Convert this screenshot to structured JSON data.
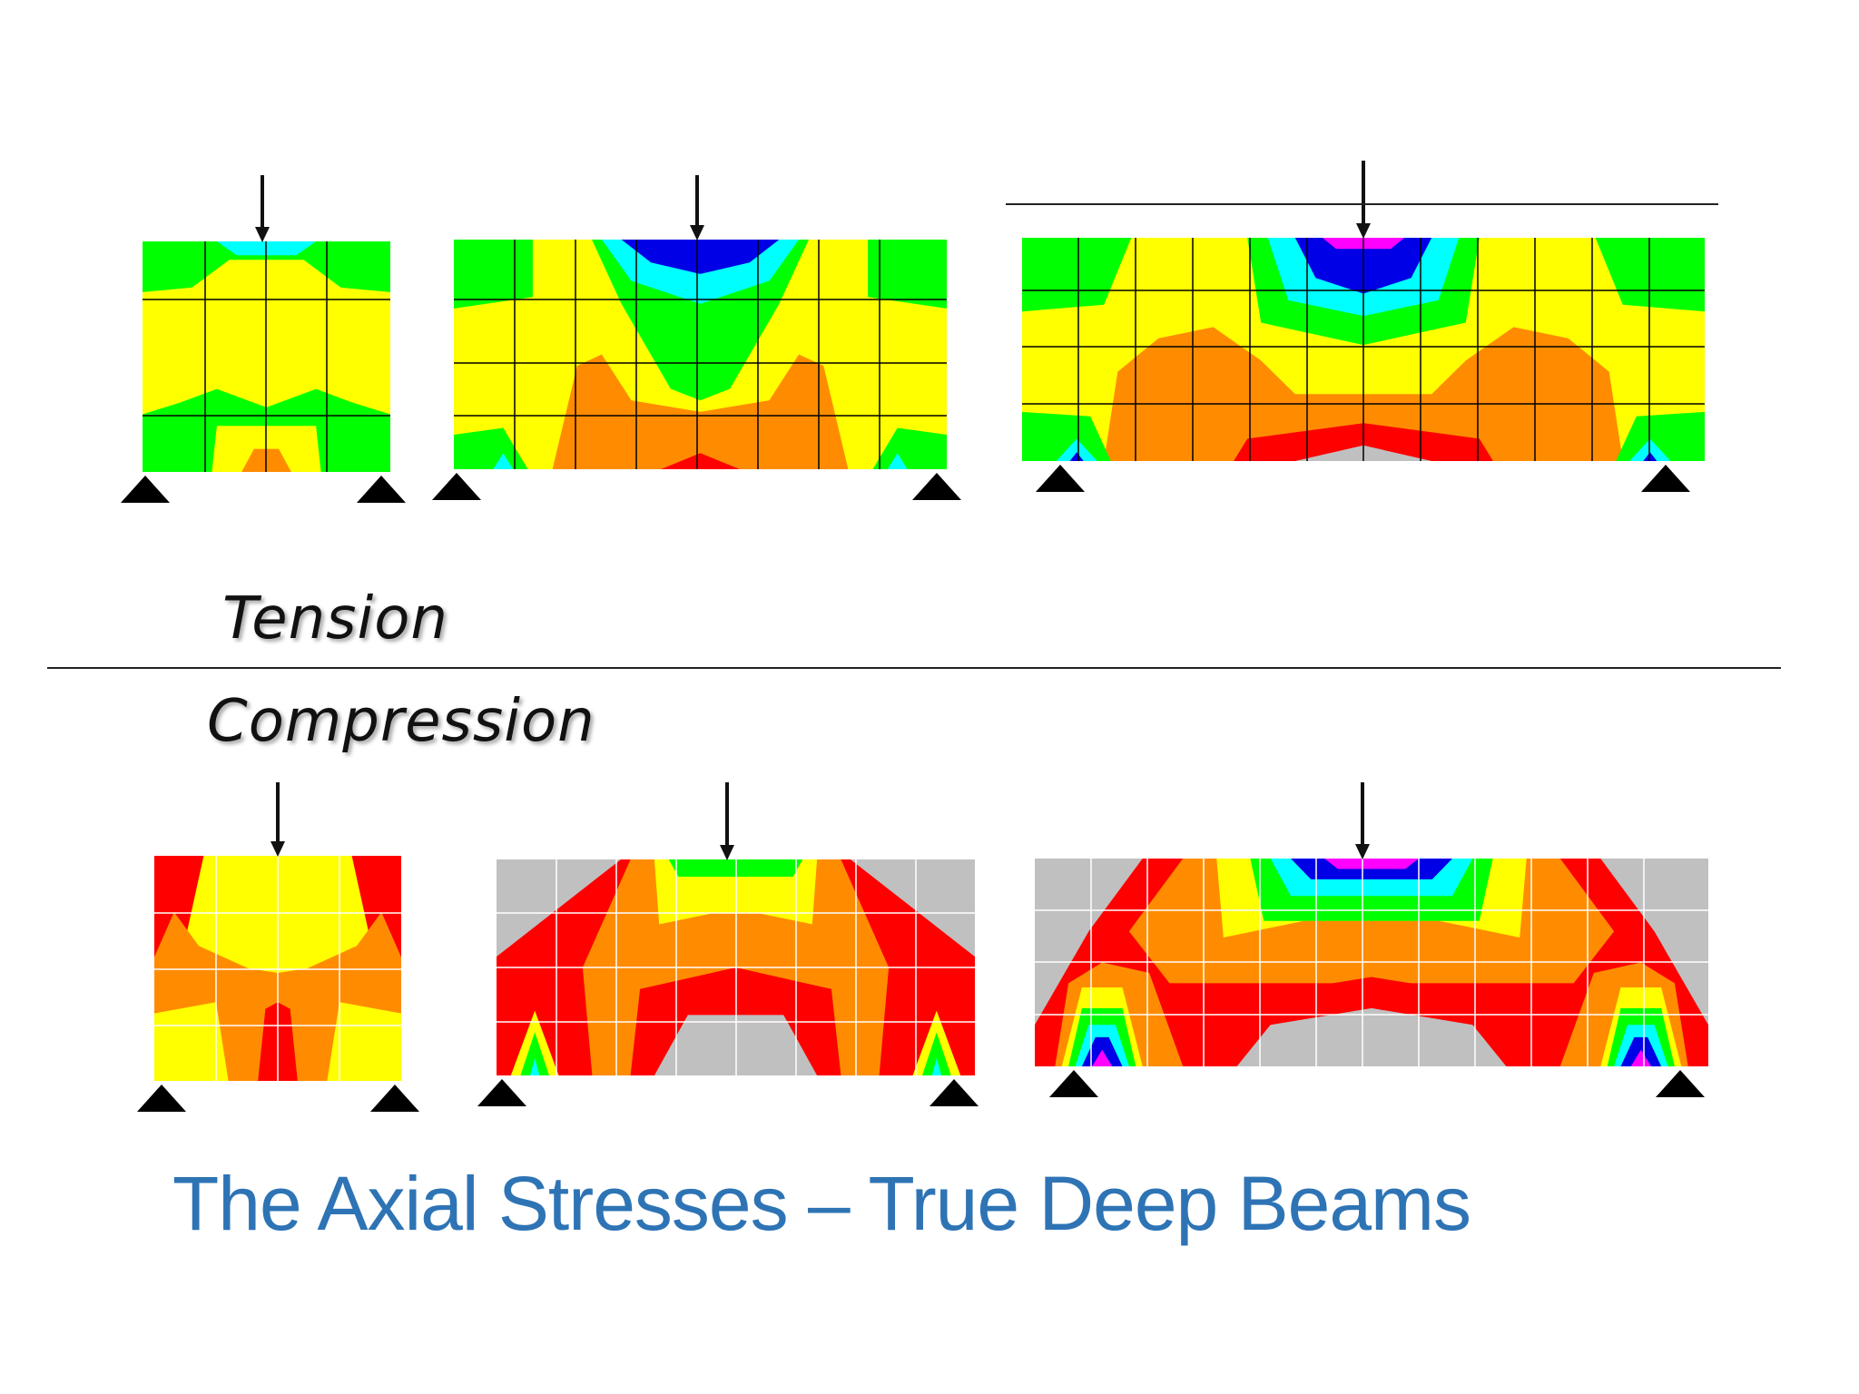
{
  "labels": {
    "tension": "Tension",
    "compression": "Compression"
  },
  "title": "The Axial Stresses – True Deep Beams",
  "colors": {
    "title": "#2e74b5",
    "magenta": "#ff00ff",
    "blue": "#0000e6",
    "cyan": "#00ffff",
    "green": "#00ff00",
    "yellow": "#ffff00",
    "orange": "#ff8c00",
    "red": "#ff0000",
    "gray": "#c0c0c0",
    "support": "#000000",
    "mesh_tension": "#000000",
    "mesh_compression": "#ffffff"
  },
  "panels": {
    "tension": [
      "short-beam",
      "medium-beam",
      "long-beam"
    ],
    "compression": [
      "short-beam",
      "medium-beam",
      "long-beam"
    ]
  }
}
